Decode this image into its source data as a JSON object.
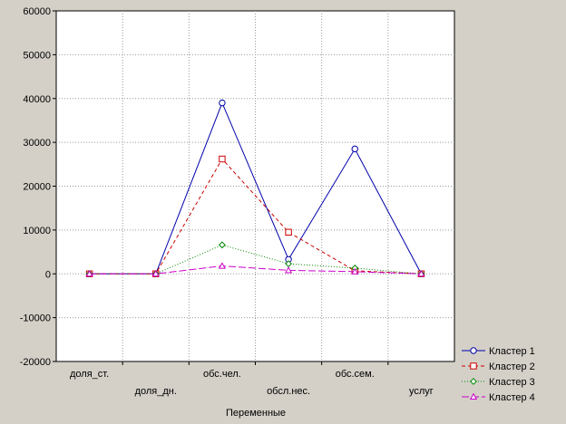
{
  "chart_data": {
    "type": "line",
    "title": "",
    "xlabel": "Переменные",
    "ylabel": "",
    "categories": [
      "доля_ст.",
      "доля_дн.",
      "обс.чел.",
      "обсл.нес.",
      "обс.сем.",
      "услуг"
    ],
    "ylim": [
      -20000,
      60000
    ],
    "yticks": [
      -20000,
      -10000,
      0,
      10000,
      20000,
      30000,
      40000,
      50000,
      60000
    ],
    "grid": true,
    "legend_position": "bottom-right",
    "series": [
      {
        "name": "Кластер 1",
        "values": [
          0,
          0,
          39000,
          3300,
          28500,
          0
        ],
        "color": "#0000aa",
        "marker": "circle",
        "dash": ""
      },
      {
        "name": "Кластер 2",
        "values": [
          0,
          0,
          26200,
          9500,
          700,
          0
        ],
        "color": "#cc0000",
        "marker": "square",
        "dash": "4,3"
      },
      {
        "name": "Кластер 3",
        "values": [
          0,
          0,
          6600,
          2300,
          1300,
          0
        ],
        "color": "#008800",
        "marker": "diamond",
        "dash": "1,2"
      },
      {
        "name": "Кластер 4",
        "values": [
          0,
          0,
          1800,
          800,
          500,
          0
        ],
        "color": "#cc00cc",
        "marker": "triangle",
        "dash": "8,3"
      }
    ]
  }
}
